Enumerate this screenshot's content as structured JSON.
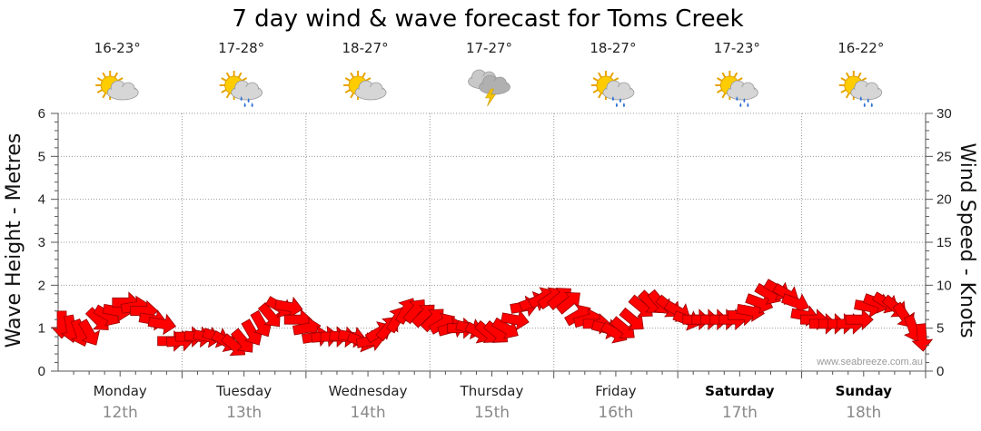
{
  "chart_data": {
    "type": "line",
    "title": "7 day wind & wave forecast for Toms Creek",
    "ylabel_left": "Wave Height - Metres",
    "ylabel_right": "Wind Speed - Knots",
    "ylim_left": [
      0,
      6
    ],
    "ylim_right": [
      0,
      30
    ],
    "left_ticks": [
      "0",
      "1",
      "2",
      "3",
      "4",
      "5",
      "6"
    ],
    "right_ticks": [
      "0",
      "5",
      "10",
      "15",
      "20",
      "25",
      "30"
    ],
    "grid": true,
    "days": [
      {
        "name": "Monday",
        "date": "12th",
        "temp": "16-23°",
        "icon": "partly-cloudy-icon",
        "bold": false
      },
      {
        "name": "Tuesday",
        "date": "13th",
        "temp": "17-28°",
        "icon": "partly-cloudy-showers-icon",
        "bold": false
      },
      {
        "name": "Wednesday",
        "date": "14th",
        "temp": "18-27°",
        "icon": "partly-cloudy-icon",
        "bold": false
      },
      {
        "name": "Thursday",
        "date": "15th",
        "temp": "17-27°",
        "icon": "storm-icon",
        "bold": false
      },
      {
        "name": "Friday",
        "date": "16th",
        "temp": "18-27°",
        "icon": "partly-cloudy-showers-icon",
        "bold": false
      },
      {
        "name": "Saturday",
        "date": "17th",
        "temp": "17-23°",
        "icon": "partly-cloudy-showers-icon",
        "bold": true
      },
      {
        "name": "Sunday",
        "date": "18th",
        "temp": "16-22°",
        "icon": "partly-cloudy-showers-icon",
        "bold": true
      }
    ],
    "wind_arrow_color": "#ff0000",
    "wind_knots": [
      5.5,
      5,
      4.5,
      4.5,
      6,
      6.5,
      7,
      8,
      7.5,
      7,
      6,
      5.5,
      3.5,
      3.5,
      4,
      4,
      4,
      4,
      3.5,
      3,
      3.5,
      4.5,
      5.5,
      6.5,
      7.5,
      7.5,
      6,
      5,
      4,
      4,
      4,
      4,
      4,
      3.5,
      3.5,
      4.5,
      5,
      6,
      7,
      7,
      6.5,
      6,
      5.5,
      5,
      5,
      5,
      4.5,
      4.5,
      4.5,
      5,
      6,
      7.5,
      8,
      8.5,
      8.5,
      8.5,
      8,
      6.5,
      6,
      5.5,
      5,
      4.5,
      5,
      6,
      7.5,
      8,
      8,
      7.5,
      7,
      6,
      6,
      6,
      6,
      6,
      6,
      6.5,
      7,
      8,
      9,
      9.5,
      9,
      8,
      6.5,
      6,
      5.5,
      5.5,
      5.5,
      5.5,
      6,
      7.5,
      8,
      8,
      7.5,
      6.5,
      5,
      4
    ],
    "wind_dir_deg": [
      180,
      170,
      160,
      150,
      135,
      120,
      100,
      90,
      80,
      90,
      100,
      100,
      90,
      85,
      90,
      95,
      100,
      110,
      120,
      130,
      140,
      150,
      150,
      140,
      120,
      100,
      90,
      80,
      80,
      85,
      90,
      95,
      100,
      110,
      80,
      60,
      40,
      30,
      30,
      40,
      45,
      45,
      60,
      75,
      90,
      105,
      120,
      130,
      130,
      120,
      100,
      80,
      70,
      60,
      55,
      50,
      50,
      60,
      75,
      90,
      105,
      120,
      130,
      130,
      130,
      135,
      140,
      130,
      120,
      110,
      90,
      90,
      90,
      90,
      90,
      90,
      100,
      110,
      120,
      120,
      120,
      110,
      100,
      90,
      90,
      90,
      90,
      90,
      90,
      100,
      110,
      120,
      130,
      145,
      160,
      175
    ],
    "watermark": "www.seabreeze.com.au"
  }
}
